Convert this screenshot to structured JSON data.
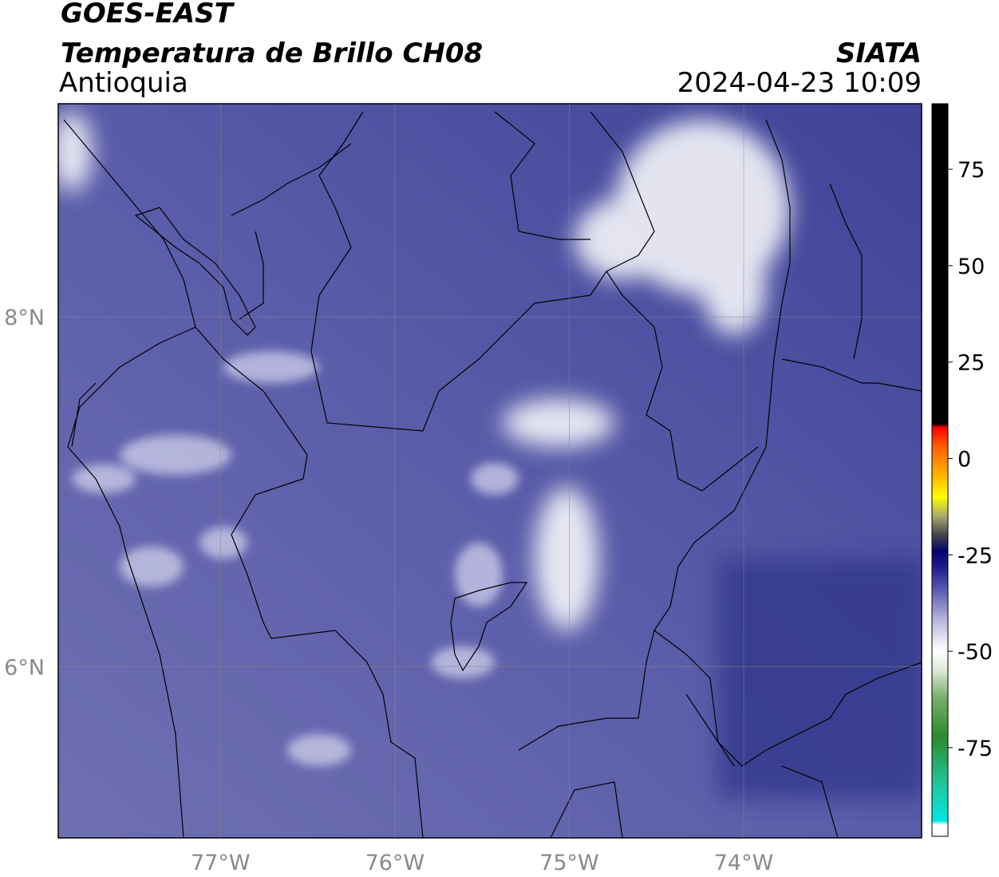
{
  "header": {
    "line1": "GOES-EAST",
    "line2": "Temperatura de Brillo CH08",
    "region": "Antioquia",
    "source": "SIATA",
    "timestamp": "2024-04-23 10:09"
  },
  "map": {
    "lonlim": [
      -77.93,
      -72.98
    ],
    "latlim": [
      5.02,
      9.22
    ],
    "lonticks": [
      {
        "value": -77,
        "label": "77°W"
      },
      {
        "value": -76,
        "label": "76°W"
      },
      {
        "value": -75,
        "label": "75°W"
      },
      {
        "value": -74,
        "label": "74°W"
      }
    ],
    "latticks": [
      {
        "value": 8,
        "label": "8°N"
      },
      {
        "value": 6,
        "label": "6°N"
      }
    ],
    "grid": true
  },
  "colorbar": {
    "lim": [
      -98,
      92
    ],
    "ticks": [
      75,
      50,
      25,
      0,
      -25,
      -50,
      -75
    ],
    "stops": [
      {
        "value": -98,
        "color": "#ffffff"
      },
      {
        "value": -95,
        "color": "#ffffff"
      },
      {
        "value": -94,
        "color": "#00e8e0"
      },
      {
        "value": -85,
        "color": "#20c8a0"
      },
      {
        "value": -72,
        "color": "#2e8b2e"
      },
      {
        "value": -62,
        "color": "#7aae6a"
      },
      {
        "value": -55,
        "color": "#dde8d8"
      },
      {
        "value": -50,
        "color": "#ffffff"
      },
      {
        "value": -42,
        "color": "#b8b8dc"
      },
      {
        "value": -34,
        "color": "#5a5ab0"
      },
      {
        "value": -28,
        "color": "#1a1a8c"
      },
      {
        "value": -24,
        "color": "#05056e"
      },
      {
        "value": -20,
        "color": "#404050"
      },
      {
        "value": -15,
        "color": "#a8a870"
      },
      {
        "value": -10,
        "color": "#ffff00"
      },
      {
        "value": -4,
        "color": "#ffb000"
      },
      {
        "value": 3,
        "color": "#ff6000"
      },
      {
        "value": 8,
        "color": "#ff0000"
      },
      {
        "value": 9,
        "color": "#000000"
      },
      {
        "value": 92,
        "color": "#000000"
      }
    ]
  }
}
